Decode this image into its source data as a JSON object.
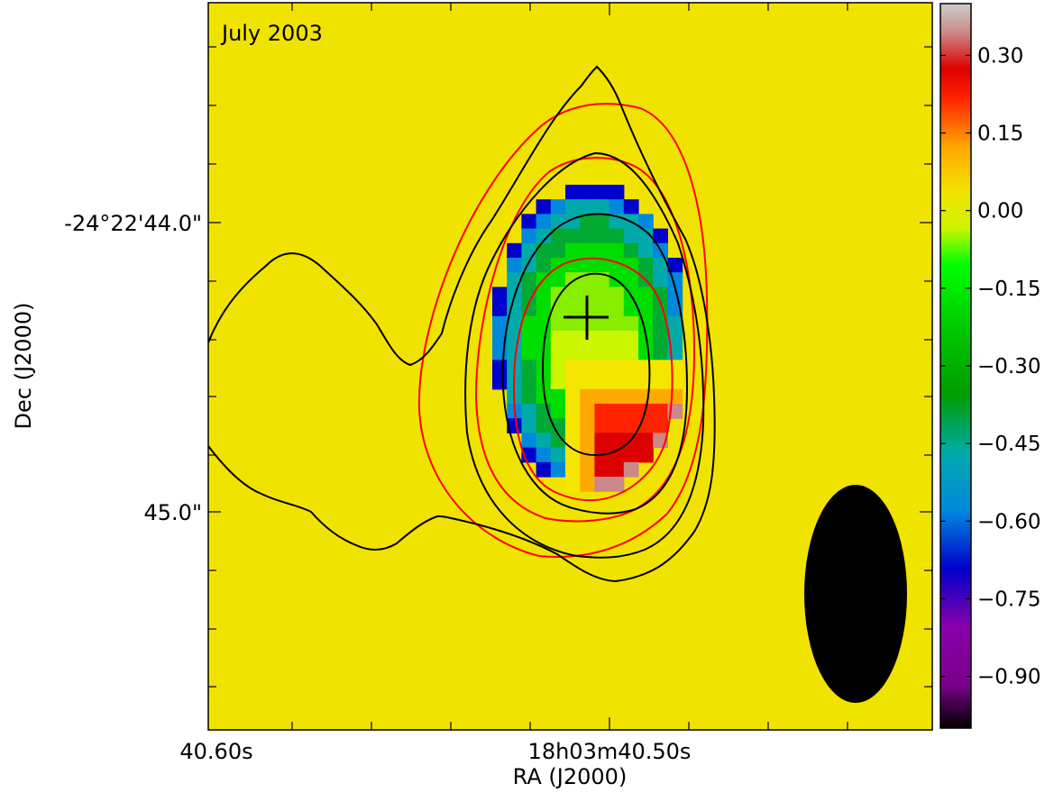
{
  "chart_data": {
    "type": "heatmap",
    "panel_label": "July 2003",
    "xlabel": "RA (J2000)",
    "ylabel": "Dec (J2000)",
    "x_ticks": [
      "40.60s",
      "18h03m40.50s"
    ],
    "y_ticks": [
      "-24°22'44.0\"",
      "45.0\""
    ],
    "colorbar": {
      "ticks": [
        0.3,
        0.15,
        0.0,
        -0.15,
        -0.3,
        -0.45,
        -0.6,
        -0.75,
        -0.9
      ],
      "tick_labels": [
        "0.30",
        "0.15",
        "0.00",
        "−0.15",
        "−0.30",
        "−0.45",
        "−0.60",
        "−0.75",
        "−0.90"
      ],
      "range": [
        -1.0,
        0.4
      ],
      "colormap": "spectral"
    },
    "background_value": 0.0,
    "colors": {
      "contour_black": "#000000",
      "contour_red": "#ff0000",
      "beam": "#000000"
    },
    "notes_visible": [
      "cross marker at emission peak",
      "filled black beam ellipse at bottom right"
    ]
  }
}
